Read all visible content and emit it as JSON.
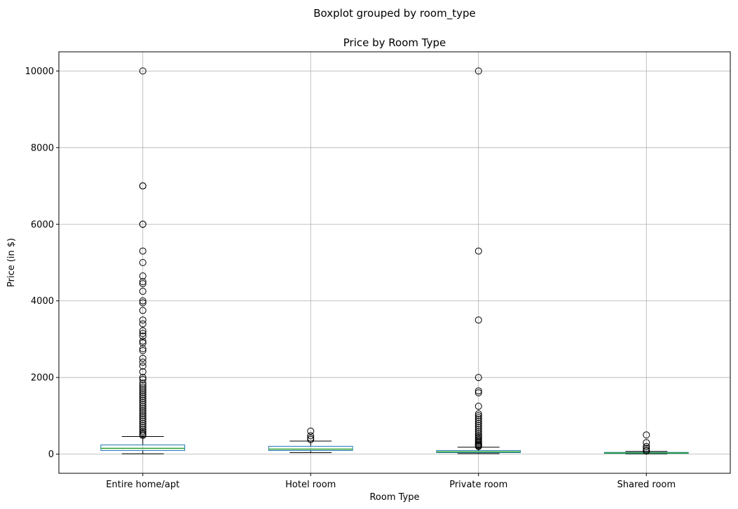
{
  "chart_data": {
    "type": "boxplot",
    "suptitle": "Boxplot grouped by room_type",
    "title": "Price by Room Type",
    "xlabel": "Room Type",
    "ylabel": "Price (in $)",
    "ylim": [
      -500,
      10500
    ],
    "yticks": [
      0,
      2000,
      4000,
      6000,
      8000,
      10000
    ],
    "grid": true,
    "colors": {
      "box": "#1f77b4",
      "median": "#2ca02c",
      "whisker": "#000000",
      "grid": "#b0b0b0"
    },
    "categories": [
      "Entire home/apt",
      "Hotel room",
      "Private room",
      "Shared room"
    ],
    "boxes": [
      {
        "q1": 95,
        "median": 150,
        "q3": 240,
        "whislo": 10,
        "whishi": 460,
        "fliers": [
          10000,
          7000,
          7000,
          6000,
          6000,
          5300,
          5000,
          4650,
          4500,
          4450,
          4250,
          4000,
          3950,
          3750,
          3500,
          3400,
          3220,
          3150,
          3080,
          2950,
          2900,
          2750,
          2700,
          2500,
          2400,
          2300,
          2150,
          2000,
          1950,
          1850,
          1800,
          1750,
          1700,
          1650,
          1600,
          1550,
          1500,
          1450,
          1400,
          1350,
          1300,
          1250,
          1200,
          1150,
          1100,
          1050,
          1000,
          950,
          900,
          850,
          800,
          750,
          700,
          650,
          600,
          560,
          520,
          490
        ]
      },
      {
        "q1": 95,
        "median": 130,
        "q3": 205,
        "whislo": 40,
        "whishi": 340,
        "fliers": [
          600,
          480,
          420,
          380
        ]
      },
      {
        "q1": 40,
        "median": 60,
        "q3": 95,
        "whislo": 15,
        "whishi": 180,
        "fliers": [
          10000,
          5300,
          3500,
          2000,
          1650,
          1600,
          1250,
          1050,
          1000,
          950,
          900,
          850,
          800,
          750,
          700,
          650,
          600,
          550,
          500,
          460,
          420,
          380,
          350,
          320,
          290,
          260,
          240,
          220,
          200
        ]
      },
      {
        "q1": 20,
        "median": 30,
        "q3": 45,
        "whislo": 10,
        "whishi": 70,
        "fliers": [
          500,
          300,
          200,
          150,
          110,
          80
        ]
      }
    ]
  }
}
